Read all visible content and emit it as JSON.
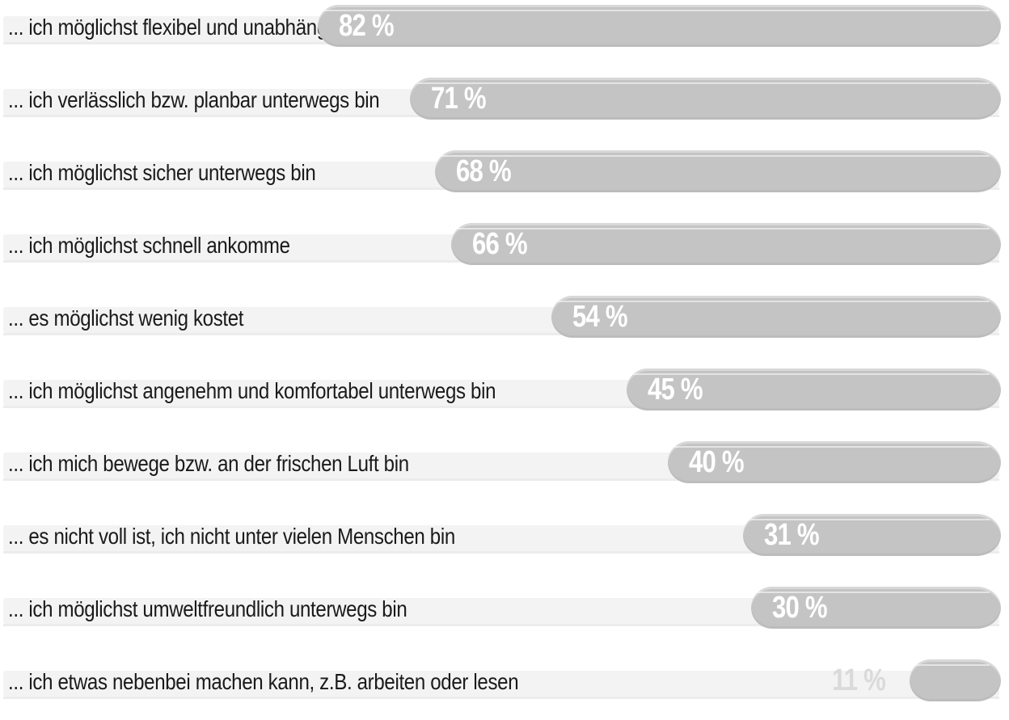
{
  "chart_data": {
    "type": "bar",
    "orientation": "horizontal",
    "categories": [
      "... ich möglichst flexibel und unabhängig bin",
      "... ich verlässlich bzw. planbar unterwegs bin",
      "... ich möglichst sicher unterwegs bin",
      "... ich möglichst schnell ankomme",
      "... es möglichst wenig kostet",
      "... ich möglichst angenehm und komfortabel unterwegs bin",
      "... ich mich bewege bzw. an der frischen Luft bin",
      "... es nicht voll ist, ich nicht unter vielen Menschen bin",
      "... ich möglichst umweltfreundlich unterwegs bin",
      "... ich etwas nebenbei machen kann, z.B. arbeiten oder lesen"
    ],
    "values": [
      82,
      71,
      68,
      66,
      54,
      45,
      40,
      31,
      30,
      11
    ],
    "value_labels": [
      "82 %",
      "71 %",
      "68 %",
      "66 %",
      "54 %",
      "45 %",
      "40 %",
      "31 %",
      "30 %",
      "11 %"
    ],
    "xlim": [
      0,
      100
    ],
    "colors": {
      "bar": "#c4c4c4",
      "track": "#f3f3f3",
      "label_text": "#1a1a1a",
      "value_text": "#ffffff",
      "value_text_outside": "#dadada"
    },
    "grid": false,
    "legend": "none"
  }
}
